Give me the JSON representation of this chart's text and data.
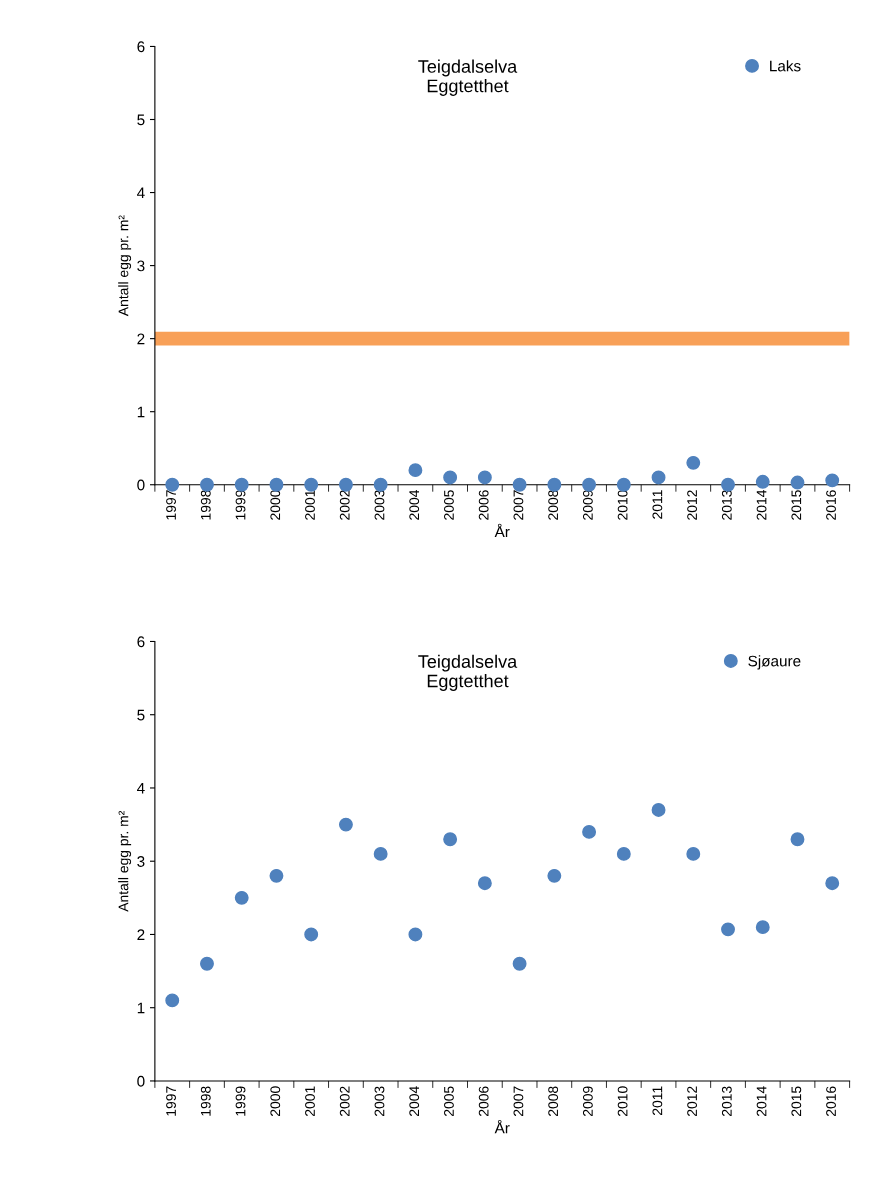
{
  "chart_data": [
    {
      "type": "scatter",
      "title": "Teigdalselva\nEggtetthet",
      "xlabel": "År",
      "ylabel": "Antall egg pr. m²",
      "categories": [
        "1997",
        "1998",
        "1999",
        "2000",
        "2001",
        "2002",
        "2003",
        "2004",
        "2005",
        "2006",
        "2007",
        "2008",
        "2009",
        "2010",
        "2011",
        "2012",
        "2013",
        "2014",
        "2015",
        "2016"
      ],
      "series": [
        {
          "name": "Laks",
          "color": "#4f81bd",
          "values": [
            0,
            0,
            0,
            0,
            0,
            0,
            0,
            0.2,
            0.1,
            0.1,
            0,
            0,
            0,
            0,
            0.1,
            0.3,
            0,
            0.04,
            0.03,
            0.06
          ]
        }
      ],
      "ylim": [
        0,
        6
      ],
      "yticks": [
        0,
        1,
        2,
        3,
        4,
        5,
        6
      ],
      "grid": false,
      "legend": "top right",
      "marker": "circle",
      "ref_lines": [
        {
          "axis": "y",
          "value": 2,
          "color": "#f79646"
        }
      ]
    },
    {
      "type": "scatter",
      "title": "Teigdalselva\nEggtetthet",
      "xlabel": "År",
      "ylabel": "Antall egg pr. m²",
      "categories": [
        "1997",
        "1998",
        "1999",
        "2000",
        "2001",
        "2002",
        "2003",
        "2004",
        "2005",
        "2006",
        "2007",
        "2008",
        "2009",
        "2010",
        "2011",
        "2012",
        "2013",
        "2014",
        "2015",
        "2016"
      ],
      "series": [
        {
          "name": "Sjøaure",
          "color": "#4f81bd",
          "values": [
            1.1,
            1.6,
            2.5,
            2.8,
            2.0,
            3.5,
            3.1,
            2.0,
            3.3,
            2.7,
            1.6,
            2.8,
            3.4,
            3.1,
            3.7,
            3.1,
            2.07,
            2.1,
            3.3,
            2.7
          ]
        }
      ],
      "ylim": [
        0,
        6
      ],
      "yticks": [
        0,
        1,
        2,
        3,
        4,
        5,
        6
      ],
      "grid": false,
      "legend": "top right",
      "marker": "circle"
    }
  ]
}
